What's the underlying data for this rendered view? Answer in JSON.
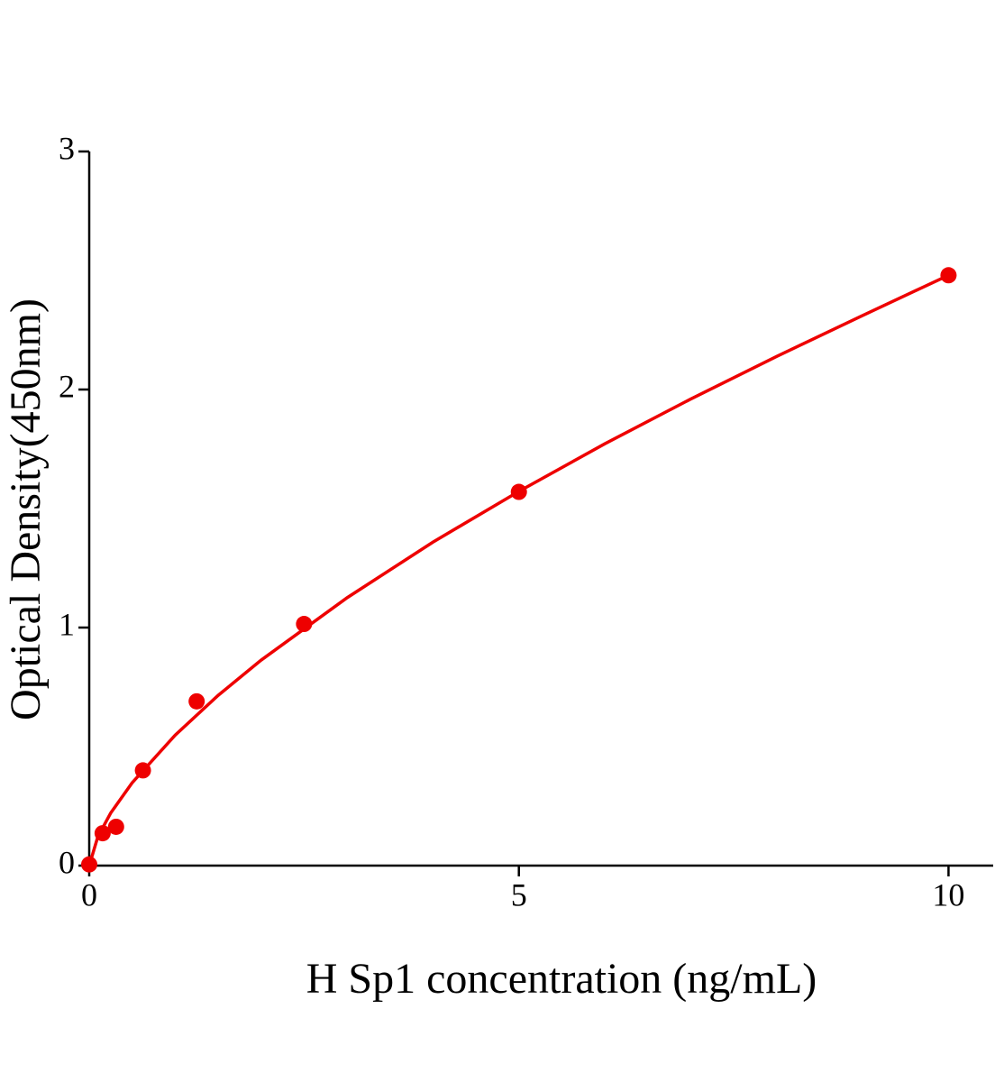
{
  "chart_data": {
    "type": "scatter",
    "x_label": "H Sp1 concentration (ng/mL)",
    "y_label": "Optical Density(450nm)",
    "xlim": [
      0,
      10.52
    ],
    "xticks": [
      0,
      5,
      10
    ],
    "ylim": [
      0,
      3
    ],
    "yticks": [
      0,
      1,
      2,
      3
    ],
    "series": [
      {
        "mode": "markers",
        "color": "#ee0000",
        "x": [
          0,
          0.156,
          0.3125,
          0.625,
          1.25,
          2.5,
          5,
          10
        ],
        "values": [
          0.005,
          0.136,
          0.163,
          0.4,
          0.69,
          1.015,
          1.57,
          2.48
        ]
      },
      {
        "mode": "line",
        "color": "#ee0000",
        "x": [
          0,
          0.1,
          0.25,
          0.5,
          1,
          1.5,
          2,
          3,
          4,
          5,
          6,
          7,
          8,
          9,
          10
        ],
        "values": [
          0,
          0.121,
          0.221,
          0.348,
          0.548,
          0.715,
          0.863,
          1.125,
          1.359,
          1.572,
          1.772,
          1.96,
          2.139,
          2.311,
          2.48
        ]
      }
    ]
  }
}
